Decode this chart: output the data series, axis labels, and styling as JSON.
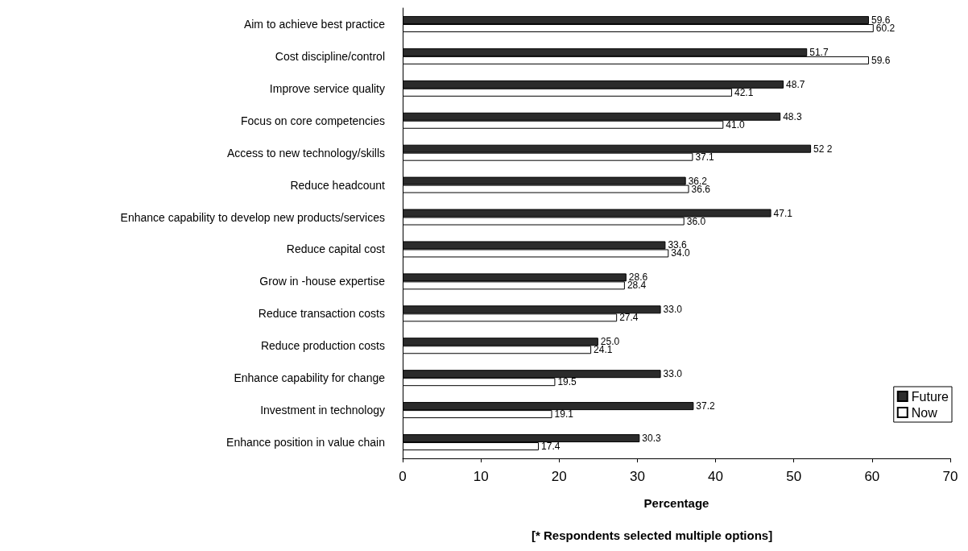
{
  "chart_data": {
    "type": "bar",
    "orientation": "horizontal",
    "xlabel": "Percentage",
    "annotations": [
      "[* Respondents selected multiple options]"
    ],
    "categories": [
      "Aim to achieve best practice",
      "Cost discipline/control",
      "Improve service quality",
      "Focus on core competencies",
      "Access to new technology/skills",
      "Reduce headcount",
      "Enhance capability to develop new products/services",
      "Reduce capital cost",
      "Grow in -house expertise",
      "Reduce transaction costs",
      "Reduce production costs",
      "Enhance capability for change",
      "Investment in technology",
      "Enhance position in value chain"
    ],
    "series": [
      {
        "name": "Future",
        "color": "#2b2b2b",
        "values": [
          59.6,
          51.7,
          48.7,
          48.3,
          52.2,
          36.2,
          47.1,
          33.6,
          28.6,
          33.0,
          25.0,
          33.0,
          37.2,
          30.3
        ],
        "value_labels": [
          "59.6",
          "51.7",
          "48.7",
          "48.3",
          "52 2",
          "36.2",
          "47.1",
          "33.6",
          "28.6",
          "33.0",
          "25.0",
          "33.0",
          "37.2",
          "30.3"
        ]
      },
      {
        "name": "Now",
        "color": "#ffffff",
        "values": [
          60.2,
          59.6,
          42.1,
          41.0,
          37.1,
          36.6,
          36.0,
          34.0,
          28.4,
          27.4,
          24.1,
          19.5,
          19.1,
          17.4
        ],
        "value_labels": [
          "60.2",
          "59.6",
          "42.1",
          "41.0",
          "37.1",
          "36.6",
          "36.0",
          "34.0",
          "28.4",
          "27.4",
          "24.1",
          "19.5",
          "19.1",
          "17.4"
        ]
      }
    ],
    "xlim": [
      0,
      70
    ],
    "xticks": [
      0,
      10,
      20,
      30,
      40,
      50,
      60,
      70
    ],
    "grid": false,
    "legend": "right"
  }
}
